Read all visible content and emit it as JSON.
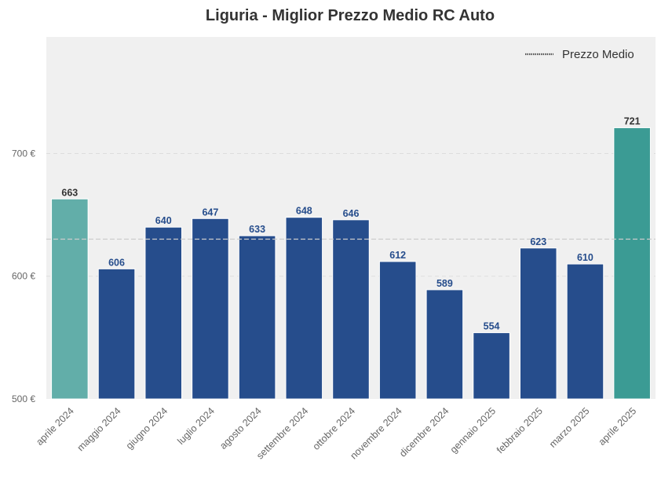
{
  "chart_data": {
    "type": "bar",
    "title": "Liguria - Miglior Prezzo Medio RC Auto",
    "xlabel": "",
    "ylabel": "",
    "ylim": [
      500,
      795
    ],
    "yticks": [
      500,
      600,
      700
    ],
    "ytick_labels": [
      "500 €",
      "600 €",
      "700 €"
    ],
    "categories": [
      "aprile 2024",
      "maggio 2024",
      "giugno 2024",
      "luglio 2024",
      "agosto 2024",
      "settembre 2024",
      "ottobre 2024",
      "novembre 2024",
      "dicembre 2024",
      "gennaio 2025",
      "febbraio 2025",
      "marzo 2025",
      "aprile 2025"
    ],
    "values": [
      663,
      606,
      640,
      647,
      633,
      648,
      646,
      612,
      589,
      554,
      623,
      610,
      721
    ],
    "value_labels": [
      "663",
      "606",
      "640",
      "647",
      "633",
      "648",
      "646",
      "612",
      "589",
      "554",
      "623",
      "610",
      "721"
    ],
    "mean_value": 630.2,
    "legend": {
      "label": "Prezzo Medio",
      "position": "top-right"
    },
    "grid": true,
    "colors": {
      "default_bar": "#264d8c",
      "first_bar": "#62aea9",
      "last_bar": "#3b9b94",
      "highlight_label": "#333333",
      "default_label": "#264d8c",
      "plot_background": "#f0f0f0",
      "mean_line": "#cccccc"
    }
  }
}
